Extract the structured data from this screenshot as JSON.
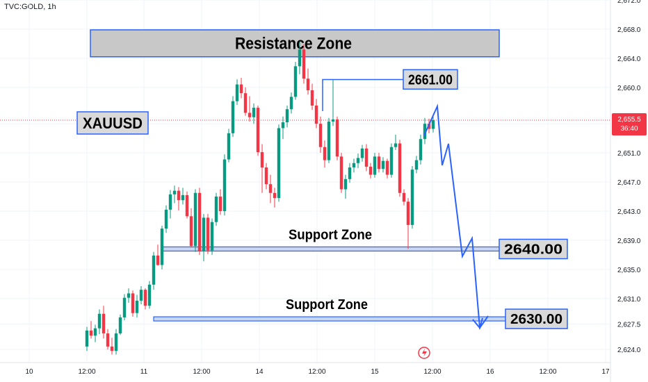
{
  "symbol_label": "TVC:GOLD, 1h",
  "price_tag": {
    "price": "2,655.5",
    "countdown": "36:40",
    "color": "#f23645"
  },
  "colors": {
    "up": "#089981",
    "down": "#f23645",
    "annot": "#2962ff",
    "zone_fill": "#c8c8c8",
    "axis_text": "#131722"
  },
  "chart_data": {
    "type": "candlestick",
    "title": "",
    "ylim": [
      2622.2,
      2672.0
    ],
    "y_ticks": [
      2624.0,
      2627.5,
      2631.0,
      2635.0,
      2639.0,
      2643.0,
      2647.0,
      2651.0,
      2655.0,
      2660.0,
      2664.0,
      2668.0,
      2672.0
    ],
    "y_tick_labels": [
      "2,624.0",
      "2,627.5",
      "2,631.0",
      "2,635.0",
      "2,639.0",
      "2,643.0",
      "2,647.0",
      "2,651.0",
      "",
      "2,660.0",
      "2,664.0",
      "2,668.0",
      "2,672.0"
    ],
    "x_ticks": [
      "10",
      "12:00",
      "11",
      "12:00",
      "14",
      "12:00",
      "15",
      "12:00",
      "16",
      "12:00",
      "17"
    ],
    "last_price": 2655.5,
    "candles": [
      [
        2624.4,
        2627.1,
        2623.8,
        2626.6
      ],
      [
        2626.6,
        2627.9,
        2625.5,
        2625.9
      ],
      [
        2625.9,
        2627.4,
        2625.0,
        2626.9
      ],
      [
        2626.9,
        2629.5,
        2626.1,
        2628.9
      ],
      [
        2628.9,
        2630.0,
        2625.5,
        2626.2
      ],
      [
        2626.2,
        2626.8,
        2624.0,
        2624.4
      ],
      [
        2624.4,
        2625.6,
        2623.3,
        2623.8
      ],
      [
        2623.8,
        2626.8,
        2623.3,
        2626.2
      ],
      [
        2626.2,
        2628.8,
        2626.0,
        2628.4
      ],
      [
        2628.4,
        2631.6,
        2628.0,
        2631.1
      ],
      [
        2631.1,
        2632.4,
        2630.4,
        2631.7
      ],
      [
        2631.7,
        2632.1,
        2628.5,
        2629.0
      ],
      [
        2629.0,
        2631.5,
        2628.4,
        2630.7
      ],
      [
        2630.7,
        2632.7,
        2630.2,
        2632.2
      ],
      [
        2632.2,
        2632.4,
        2629.5,
        2630.0
      ],
      [
        2630.0,
        2633.4,
        2629.6,
        2632.9
      ],
      [
        2632.9,
        2637.4,
        2632.2,
        2636.9
      ],
      [
        2636.9,
        2638.4,
        2635.5,
        2635.6
      ],
      [
        2635.6,
        2641.0,
        2635.0,
        2640.6
      ],
      [
        2640.6,
        2643.8,
        2640.0,
        2643.2
      ],
      [
        2643.2,
        2645.9,
        2642.0,
        2645.3
      ],
      [
        2645.3,
        2646.5,
        2644.1,
        2645.8
      ],
      [
        2645.8,
        2646.3,
        2643.1,
        2644.5
      ],
      [
        2644.5,
        2646.2,
        2643.9,
        2645.2
      ],
      [
        2645.2,
        2645.7,
        2642.0,
        2642.3
      ],
      [
        2642.3,
        2643.4,
        2638.0,
        2638.2
      ],
      [
        2638.2,
        2646.0,
        2637.4,
        2645.5
      ],
      [
        2645.5,
        2646.2,
        2637.0,
        2637.5
      ],
      [
        2637.5,
        2642.6,
        2636.1,
        2642.1
      ],
      [
        2642.1,
        2642.6,
        2637.1,
        2637.6
      ],
      [
        2637.6,
        2642.0,
        2637.0,
        2641.5
      ],
      [
        2641.5,
        2645.5,
        2641.0,
        2645.0
      ],
      [
        2645.0,
        2646.0,
        2642.5,
        2643.0
      ],
      [
        2643.0,
        2650.8,
        2642.4,
        2650.1
      ],
      [
        2650.1,
        2654.3,
        2649.7,
        2653.7
      ],
      [
        2653.7,
        2658.8,
        2653.2,
        2658.1
      ],
      [
        2658.1,
        2661.1,
        2657.6,
        2660.4
      ],
      [
        2660.4,
        2661.3,
        2658.5,
        2659.2
      ],
      [
        2659.2,
        2660.0,
        2656.1,
        2656.5
      ],
      [
        2656.5,
        2658.8,
        2655.3,
        2655.9
      ],
      [
        2655.9,
        2657.8,
        2655.0,
        2657.2
      ],
      [
        2657.2,
        2657.5,
        2650.6,
        2651.1
      ],
      [
        2651.1,
        2652.2,
        2645.5,
        2649.0
      ],
      [
        2649.0,
        2649.6,
        2646.0,
        2646.7
      ],
      [
        2646.7,
        2648.0,
        2644.1,
        2645.5
      ],
      [
        2645.5,
        2646.2,
        2643.5,
        2644.8
      ],
      [
        2644.8,
        2654.9,
        2644.3,
        2654.4
      ],
      [
        2654.4,
        2656.0,
        2652.9,
        2655.2
      ],
      [
        2655.2,
        2657.5,
        2654.5,
        2657.0
      ],
      [
        2657.0,
        2659.3,
        2656.4,
        2658.7
      ],
      [
        2658.7,
        2663.5,
        2658.3,
        2662.9
      ],
      [
        2662.9,
        2666.3,
        2661.8,
        2665.2
      ],
      [
        2665.2,
        2665.9,
        2660.5,
        2661.2
      ],
      [
        2661.2,
        2662.6,
        2659.0,
        2659.6
      ],
      [
        2659.6,
        2660.5,
        2656.9,
        2657.5
      ],
      [
        2657.5,
        2658.4,
        2654.4,
        2655.0
      ],
      [
        2655.0,
        2656.0,
        2651.0,
        2651.8
      ],
      [
        2651.8,
        2652.7,
        2649.0,
        2650.0
      ],
      [
        2650.0,
        2655.8,
        2649.6,
        2655.3
      ],
      [
        2655.3,
        2661.0,
        2654.7,
        2655.6
      ],
      [
        2655.6,
        2656.0,
        2650.0,
        2650.5
      ],
      [
        2650.5,
        2651.0,
        2645.5,
        2646.0
      ],
      [
        2646.0,
        2648.0,
        2644.7,
        2647.4
      ],
      [
        2647.4,
        2649.6,
        2646.9,
        2649.0
      ],
      [
        2649.0,
        2650.2,
        2648.3,
        2649.6
      ],
      [
        2649.6,
        2650.9,
        2648.9,
        2650.3
      ],
      [
        2650.3,
        2652.1,
        2649.8,
        2651.6
      ],
      [
        2651.6,
        2652.2,
        2648.5,
        2649.1
      ],
      [
        2649.1,
        2649.6,
        2647.5,
        2648.0
      ],
      [
        2648.0,
        2651.0,
        2647.6,
        2650.5
      ],
      [
        2650.5,
        2651.0,
        2648.3,
        2648.8
      ],
      [
        2648.8,
        2650.4,
        2648.3,
        2649.9
      ],
      [
        2649.9,
        2650.2,
        2647.5,
        2648.0
      ],
      [
        2648.0,
        2652.3,
        2647.6,
        2651.8
      ],
      [
        2651.8,
        2653.5,
        2651.4,
        2652.3
      ],
      [
        2652.3,
        2652.8,
        2645.0,
        2645.5
      ],
      [
        2645.5,
        2646.0,
        2643.8,
        2644.3
      ],
      [
        2644.3,
        2644.8,
        2637.8,
        2641.1
      ],
      [
        2641.1,
        2649.2,
        2640.6,
        2648.7
      ],
      [
        2648.7,
        2650.6,
        2648.2,
        2650.0
      ],
      [
        2650.0,
        2653.5,
        2649.4,
        2652.9
      ],
      [
        2652.9,
        2655.8,
        2652.2,
        2655.0
      ],
      [
        2655.0,
        2655.7,
        2653.7,
        2654.3
      ],
      [
        2654.3,
        2656.0,
        2653.8,
        2655.5
      ]
    ],
    "annotations": {
      "resistance": {
        "label": "Resistance Zone",
        "low": 2664.2,
        "high": 2667.9
      },
      "support_upper": {
        "label": "Support Zone",
        "level": 2637.8
      },
      "support_lower": {
        "label": "Support Zone",
        "level": 2628.2
      },
      "price_labels": [
        {
          "text": "2661.00",
          "value": 2661.0
        },
        {
          "text": "2640.00",
          "value": 2640.0
        },
        {
          "text": "2630.00",
          "value": 2630.0
        }
      ],
      "symbol_box": "XAUUSD"
    }
  }
}
